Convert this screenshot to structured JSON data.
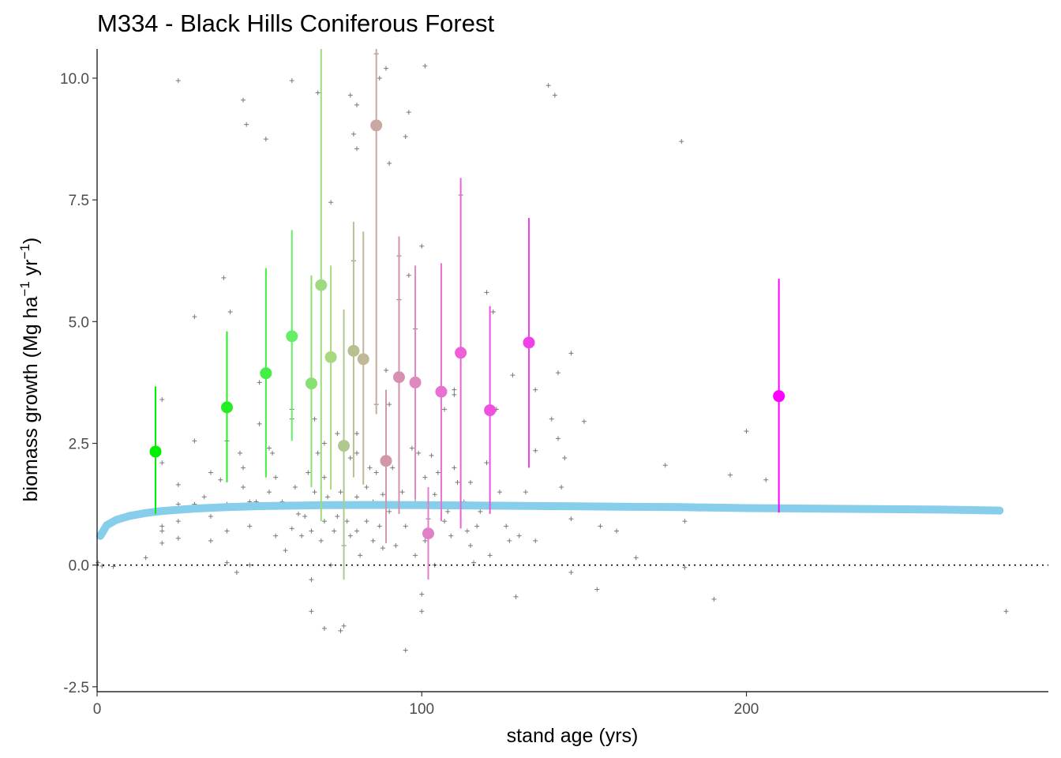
{
  "chart_data": {
    "type": "scatter",
    "title": "M334 - Black Hills Coniferous Forest",
    "xlabel": "stand age (yrs)",
    "ylabel": "biomass growth (Mg ha",
    "ylabel_sup1": "−1",
    "ylabel_mid": " yr",
    "ylabel_sup2": "−1",
    "ylabel_end": ")",
    "xlim": [
      0,
      293
    ],
    "ylim": [
      -2.6,
      10.6
    ],
    "x_ticks": [
      0,
      100,
      200
    ],
    "x_tick_labels": [
      "0",
      "100",
      "200"
    ],
    "y_ticks": [
      -2.5,
      0,
      2.5,
      5,
      7.5,
      10
    ],
    "y_tick_labels": [
      "-2.5",
      "0.0",
      "2.5",
      "5.0",
      "7.5",
      "10.0"
    ],
    "grid": false,
    "reference_line": {
      "y": 0,
      "style": "dotted",
      "color": "#000000"
    },
    "fit_curve": {
      "color": "#87CEEB",
      "points": [
        [
          1,
          0.6
        ],
        [
          3,
          0.82
        ],
        [
          6,
          0.93
        ],
        [
          10,
          1.01
        ],
        [
          15,
          1.07
        ],
        [
          20,
          1.11
        ],
        [
          30,
          1.16
        ],
        [
          40,
          1.19
        ],
        [
          50,
          1.21
        ],
        [
          60,
          1.22
        ],
        [
          70,
          1.23
        ],
        [
          85,
          1.235
        ],
        [
          100,
          1.23
        ],
        [
          120,
          1.22
        ],
        [
          140,
          1.21
        ],
        [
          160,
          1.2
        ],
        [
          180,
          1.19
        ],
        [
          200,
          1.17
        ],
        [
          220,
          1.16
        ],
        [
          240,
          1.15
        ],
        [
          260,
          1.14
        ],
        [
          278,
          1.12
        ]
      ]
    },
    "binned_means": [
      {
        "x": 18,
        "y": 2.33,
        "lo": 1.05,
        "hi": 3.67,
        "color": "#00EE00"
      },
      {
        "x": 40,
        "y": 3.24,
        "lo": 1.7,
        "hi": 4.8,
        "color": "#22EE22"
      },
      {
        "x": 52,
        "y": 3.94,
        "lo": 1.8,
        "hi": 6.1,
        "color": "#44EE44"
      },
      {
        "x": 60,
        "y": 4.7,
        "lo": 2.55,
        "hi": 6.88,
        "color": "#66EE66"
      },
      {
        "x": 66,
        "y": 3.73,
        "lo": 1.6,
        "hi": 5.95,
        "color": "#88E070"
      },
      {
        "x": 69,
        "y": 5.75,
        "lo": 0.9,
        "hi": 10.6,
        "color": "#A0DA80"
      },
      {
        "x": 72,
        "y": 4.27,
        "lo": 1.55,
        "hi": 6.15,
        "color": "#A8D880"
      },
      {
        "x": 76,
        "y": 2.45,
        "lo": -0.3,
        "hi": 5.25,
        "color": "#B0C890"
      },
      {
        "x": 79,
        "y": 4.4,
        "lo": 1.8,
        "hi": 7.05,
        "color": "#B8C090"
      },
      {
        "x": 82,
        "y": 4.23,
        "lo": 1.65,
        "hi": 6.85,
        "color": "#C0B898"
      },
      {
        "x": 86,
        "y": 9.03,
        "lo": 3.1,
        "hi": 10.6,
        "color": "#C8A8A0"
      },
      {
        "x": 89,
        "y": 2.14,
        "lo": 0.45,
        "hi": 3.6,
        "color": "#D098A8"
      },
      {
        "x": 93,
        "y": 3.86,
        "lo": 1.05,
        "hi": 6.75,
        "color": "#D890B0"
      },
      {
        "x": 98,
        "y": 3.75,
        "lo": 1.35,
        "hi": 6.15,
        "color": "#E088C0"
      },
      {
        "x": 102,
        "y": 0.65,
        "lo": -0.3,
        "hi": 1.6,
        "color": "#E080C8"
      },
      {
        "x": 106,
        "y": 3.56,
        "lo": 0.9,
        "hi": 6.2,
        "color": "#E870D0"
      },
      {
        "x": 112,
        "y": 4.36,
        "lo": 0.75,
        "hi": 7.95,
        "color": "#EE60D8"
      },
      {
        "x": 121,
        "y": 3.18,
        "lo": 1.05,
        "hi": 5.32,
        "color": "#F050E0"
      },
      {
        "x": 133,
        "y": 4.57,
        "lo": 2.0,
        "hi": 7.13,
        "color": "#F040E8"
      },
      {
        "x": 210,
        "y": 3.47,
        "lo": 1.08,
        "hi": 5.88,
        "color": "#FF00FF"
      }
    ],
    "raw_points": [
      [
        0.3,
        0.05
      ],
      [
        1.5,
        -0.02
      ],
      [
        5,
        -0.03
      ],
      [
        15,
        0.15
      ],
      [
        20,
        0.45
      ],
      [
        20,
        0.7
      ],
      [
        20,
        0.8
      ],
      [
        20,
        2.1
      ],
      [
        20,
        3.4
      ],
      [
        25,
        9.95
      ],
      [
        25,
        0.55
      ],
      [
        25,
        0.9
      ],
      [
        25,
        1.25
      ],
      [
        25,
        1.65
      ],
      [
        30,
        5.1
      ],
      [
        30,
        2.55
      ],
      [
        30,
        1.25
      ],
      [
        33,
        1.4
      ],
      [
        35,
        1.9
      ],
      [
        35,
        1.0
      ],
      [
        35,
        0.5
      ],
      [
        38,
        1.75
      ],
      [
        39,
        5.9
      ],
      [
        40,
        2.55
      ],
      [
        40,
        1.25
      ],
      [
        40,
        0.7
      ],
      [
        40,
        0.05
      ],
      [
        41,
        5.2
      ],
      [
        42,
        1.2
      ],
      [
        43,
        -0.15
      ],
      [
        44,
        2.3
      ],
      [
        45,
        9.55
      ],
      [
        45,
        2.0
      ],
      [
        45,
        1.6
      ],
      [
        46,
        9.05
      ],
      [
        47,
        1.3
      ],
      [
        47,
        0.8
      ],
      [
        47,
        0.0
      ],
      [
        49,
        1.3
      ],
      [
        50,
        2.9
      ],
      [
        50,
        3.75
      ],
      [
        50,
        1.2
      ],
      [
        52,
        8.75
      ],
      [
        53,
        2.4
      ],
      [
        53,
        1.5
      ],
      [
        54,
        2.3
      ],
      [
        55,
        1.8
      ],
      [
        55,
        0.6
      ],
      [
        57,
        1.3
      ],
      [
        58,
        0.3
      ],
      [
        60,
        9.95
      ],
      [
        60,
        3.2
      ],
      [
        60,
        3.0
      ],
      [
        60,
        1.2
      ],
      [
        60,
        0.75
      ],
      [
        61,
        1.6
      ],
      [
        62,
        1.05
      ],
      [
        63,
        0.6
      ],
      [
        64,
        1.0
      ],
      [
        65,
        1.9
      ],
      [
        66,
        -0.95
      ],
      [
        66,
        -0.3
      ],
      [
        66,
        0.7
      ],
      [
        67,
        3.0
      ],
      [
        67,
        1.5
      ],
      [
        68,
        9.7
      ],
      [
        68,
        2.3
      ],
      [
        69,
        1.3
      ],
      [
        69,
        0.5
      ],
      [
        70,
        -1.3
      ],
      [
        70,
        2.5
      ],
      [
        70,
        1.8
      ],
      [
        70,
        0.9
      ],
      [
        71,
        1.4
      ],
      [
        72,
        7.45
      ],
      [
        72,
        0.0
      ],
      [
        73,
        0.7
      ],
      [
        74,
        2.7
      ],
      [
        74,
        1.0
      ],
      [
        75,
        -1.35
      ],
      [
        75,
        1.5
      ],
      [
        76,
        -1.25
      ],
      [
        76,
        0.4
      ],
      [
        77,
        0.9
      ],
      [
        78,
        9.65
      ],
      [
        78,
        2.2
      ],
      [
        78,
        0.6
      ],
      [
        79,
        8.85
      ],
      [
        79,
        6.25
      ],
      [
        80,
        9.45
      ],
      [
        80,
        8.55
      ],
      [
        80,
        2.7
      ],
      [
        80,
        2.3
      ],
      [
        80,
        1.4
      ],
      [
        80,
        0.7
      ],
      [
        81,
        0.2
      ],
      [
        83,
        1.6
      ],
      [
        83,
        0.9
      ],
      [
        84,
        2.0
      ],
      [
        85,
        1.3
      ],
      [
        85,
        0.5
      ],
      [
        86,
        10.5
      ],
      [
        86,
        3.3
      ],
      [
        86,
        1.9
      ],
      [
        87,
        10.0
      ],
      [
        87,
        0.8
      ],
      [
        88,
        1.45
      ],
      [
        88,
        0.35
      ],
      [
        89,
        10.2
      ],
      [
        89,
        4.0
      ],
      [
        90,
        8.25
      ],
      [
        90,
        3.3
      ],
      [
        90,
        1.1
      ],
      [
        91,
        2.0
      ],
      [
        92,
        0.4
      ],
      [
        93,
        6.35
      ],
      [
        93,
        5.45
      ],
      [
        94,
        1.5
      ],
      [
        95,
        8.8
      ],
      [
        95,
        -1.75
      ],
      [
        95,
        0.8
      ],
      [
        96,
        9.3
      ],
      [
        96,
        5.95
      ],
      [
        97,
        2.4
      ],
      [
        98,
        4.85
      ],
      [
        98,
        1.3
      ],
      [
        98,
        0.2
      ],
      [
        99,
        2.3
      ],
      [
        100,
        6.55
      ],
      [
        100,
        -0.6
      ],
      [
        100,
        -0.95
      ],
      [
        101,
        10.25
      ],
      [
        101,
        1.8
      ],
      [
        101,
        0.5
      ],
      [
        102,
        0.95
      ],
      [
        103,
        2.25
      ],
      [
        104,
        1.45
      ],
      [
        104,
        0.0
      ],
      [
        105,
        1.9
      ],
      [
        106,
        3.6
      ],
      [
        107,
        3.2
      ],
      [
        107,
        0.9
      ],
      [
        108,
        1.1
      ],
      [
        109,
        0.6
      ],
      [
        110,
        3.5
      ],
      [
        110,
        2.0
      ],
      [
        110,
        3.6
      ],
      [
        111,
        1.7
      ],
      [
        112,
        7.6
      ],
      [
        113,
        1.3
      ],
      [
        114,
        0.7
      ],
      [
        115,
        1.7
      ],
      [
        115,
        0.4
      ],
      [
        116,
        0.05
      ],
      [
        117,
        0.8
      ],
      [
        118,
        1.1
      ],
      [
        120,
        5.6
      ],
      [
        120,
        2.1
      ],
      [
        121,
        0.2
      ],
      [
        122,
        5.2
      ],
      [
        123,
        3.2
      ],
      [
        124,
        1.5
      ],
      [
        126,
        0.8
      ],
      [
        127,
        0.5
      ],
      [
        128,
        3.9
      ],
      [
        129,
        -0.65
      ],
      [
        130,
        0.6
      ],
      [
        132,
        1.5
      ],
      [
        134,
        4.6
      ],
      [
        135,
        3.6
      ],
      [
        135,
        2.35
      ],
      [
        135,
        0.5
      ],
      [
        139,
        9.85
      ],
      [
        140,
        3.0
      ],
      [
        141,
        9.65
      ],
      [
        142,
        3.95
      ],
      [
        142,
        2.6
      ],
      [
        143,
        1.6
      ],
      [
        144,
        2.2
      ],
      [
        146,
        4.35
      ],
      [
        146,
        0.95
      ],
      [
        146,
        -0.15
      ],
      [
        150,
        2.95
      ],
      [
        154,
        -0.5
      ],
      [
        155,
        0.8
      ],
      [
        160,
        1.2
      ],
      [
        160,
        0.7
      ],
      [
        166,
        0.15
      ],
      [
        175,
        2.05
      ],
      [
        180,
        8.7
      ],
      [
        181,
        0.9
      ],
      [
        181,
        -0.05
      ],
      [
        190,
        -0.7
      ],
      [
        195,
        1.85
      ],
      [
        200,
        2.75
      ],
      [
        206,
        1.75
      ],
      [
        280,
        -0.95
      ]
    ]
  }
}
